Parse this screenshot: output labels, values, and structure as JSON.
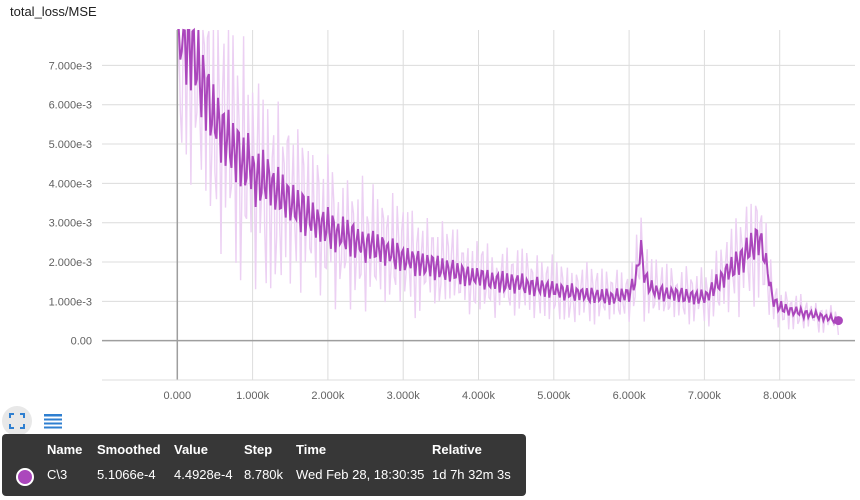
{
  "card": {
    "title": "total_loss/MSE"
  },
  "colors": {
    "series": "#ab47bc",
    "raw": "#ecd0f3",
    "grid": "#dcdcdc",
    "axis": "#9e9e9e"
  },
  "controls": {
    "expand_icon": "fit-to-view-icon",
    "data_icon": "data-table-icon"
  },
  "tooltip": {
    "headers": {
      "name": "Name",
      "smoothed": "Smoothed",
      "value": "Value",
      "step": "Step",
      "time": "Time",
      "relative": "Relative"
    },
    "row": {
      "name": "C\\3",
      "smoothed": "5.1066e-4",
      "value": "4.4928e-4",
      "step": "8.780k",
      "time": "Wed Feb 28, 18:30:35",
      "relative": "1d 7h 32m 3s"
    }
  },
  "chart_data": {
    "type": "line",
    "title": "total_loss/MSE",
    "xlabel": "",
    "ylabel": "",
    "xlim": [
      -1000,
      9000
    ],
    "ylim": [
      -0.001,
      0.0079
    ],
    "x_ticks": [
      0,
      1000,
      2000,
      3000,
      4000,
      5000,
      6000,
      7000,
      8000
    ],
    "x_tick_labels": [
      "0.000",
      "1.000k",
      "2.000k",
      "3.000k",
      "4.000k",
      "5.000k",
      "6.000k",
      "7.000k",
      "8.000k"
    ],
    "y_ticks": [
      0,
      0.001,
      0.002,
      0.003,
      0.004,
      0.005,
      0.006,
      0.007
    ],
    "y_tick_labels": [
      "0.00",
      "1.000e-3",
      "2.000e-3",
      "3.000e-3",
      "4.000e-3",
      "5.000e-3",
      "6.000e-3",
      "7.000e-3"
    ],
    "grid": true,
    "series": [
      {
        "name": "C\\3",
        "smoothed_trend": {
          "x": [
            0,
            100,
            200,
            300,
            400,
            500,
            700,
            1000,
            1500,
            2000,
            2500,
            3000,
            3500,
            4000,
            4500,
            5000,
            5500,
            5800,
            6000,
            6100,
            6150,
            6200,
            6300,
            6500,
            7000,
            7300,
            7500,
            7650,
            7700,
            7800,
            7900,
            8000,
            8300,
            8600,
            8780
          ],
          "y": [
            0.0079,
            0.0079,
            0.0075,
            0.0068,
            0.0062,
            0.0057,
            0.005,
            0.0043,
            0.0035,
            0.00285,
            0.00245,
            0.0021,
            0.00185,
            0.0016,
            0.00145,
            0.0013,
            0.00115,
            0.0011,
            0.0012,
            0.0016,
            0.0024,
            0.0017,
            0.0013,
            0.0012,
            0.0011,
            0.0017,
            0.0021,
            0.0024,
            0.0027,
            0.0022,
            0.0011,
            0.00085,
            0.0007,
            0.0006,
            0.00051066
          ]
        },
        "last_point": {
          "x": 8780,
          "smoothed": 0.00051066,
          "value": 0.00044928
        }
      }
    ]
  }
}
